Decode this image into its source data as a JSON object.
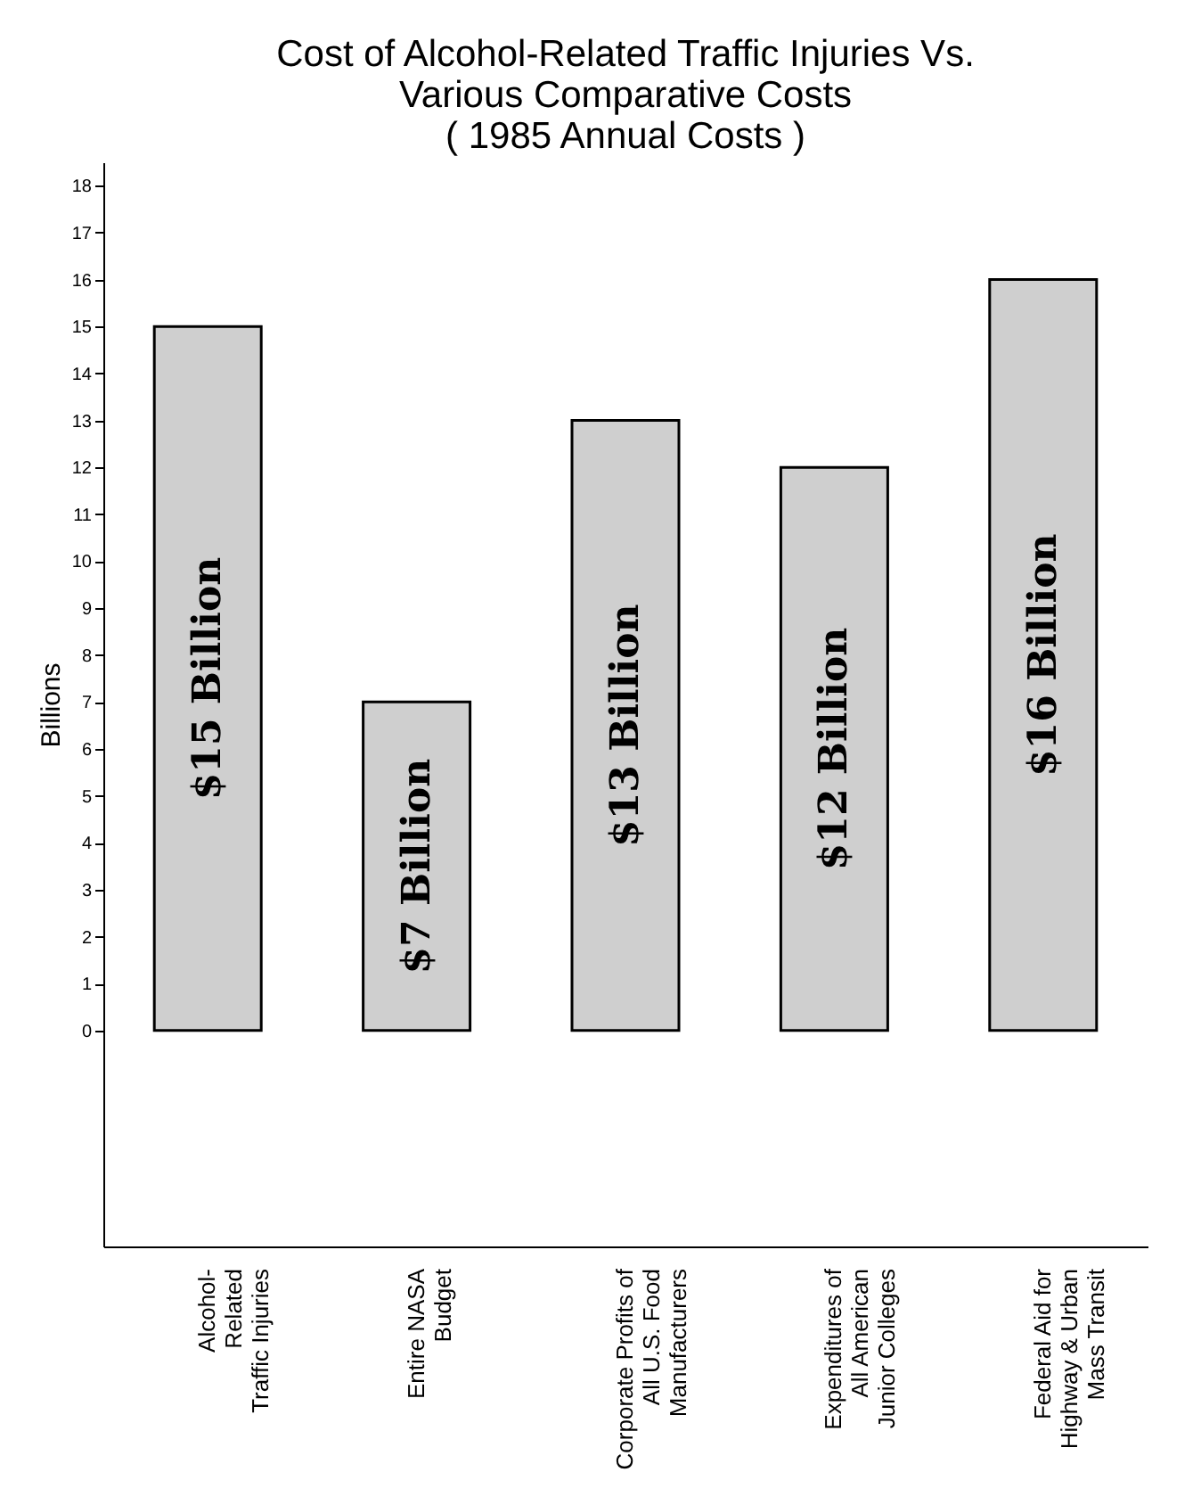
{
  "chart_data": {
    "type": "bar",
    "title": [
      "Cost of Alcohol-Related Traffic Injuries Vs.",
      "Various Comparative Costs",
      "( 1985 Annual Costs )"
    ],
    "ylabel": "Billions",
    "categories": [
      "Alcohol-\nRelated\nTraffic Injuries",
      "Entire NASA\nBudget",
      "Corporate Profits of\nAll U.S. Food\nManufacturers",
      "Expenditures of\nAll American\nJunior Colleges",
      "Federal Aid for\nHighway & Urban\nMass Transit"
    ],
    "values": [
      15,
      7,
      13,
      12,
      16
    ],
    "value_labels": [
      "$15 Billion",
      "$7 Billion",
      "$13 Billion",
      "$12 Billion",
      "$16 Billion"
    ],
    "color": "#cfcfcf",
    "ylim": [
      -4.6,
      18.5
    ],
    "yticks": [
      0,
      1,
      2,
      3,
      4,
      5,
      6,
      7,
      8,
      9,
      10,
      11,
      12,
      13,
      14,
      15,
      16,
      17,
      18
    ],
    "grid": false
  }
}
